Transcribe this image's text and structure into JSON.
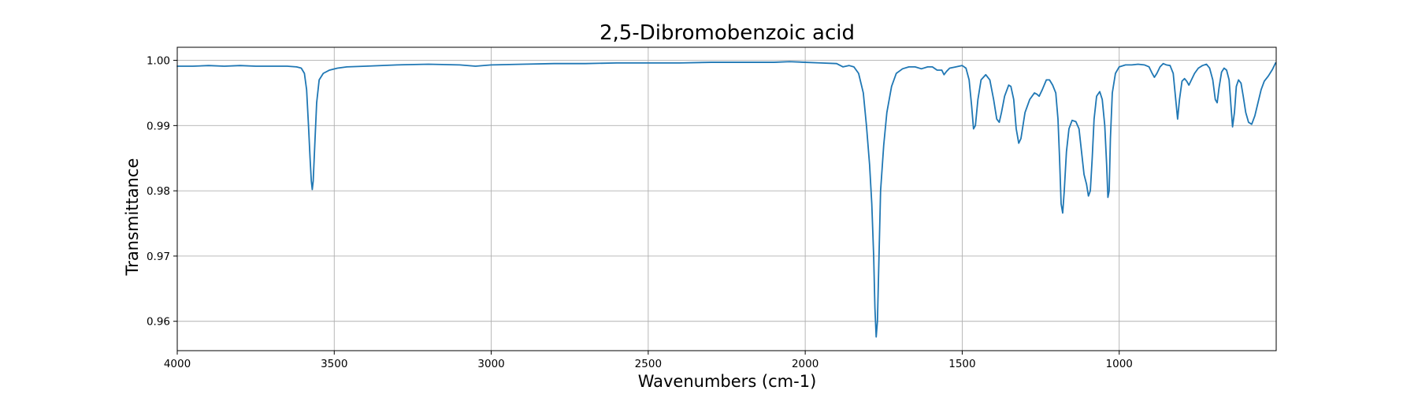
{
  "chart_data": {
    "type": "line",
    "title": "2,5-Dibromobenzoic acid",
    "xlabel": "Wavenumbers (cm-1)",
    "ylabel": "Transmittance",
    "xlim": [
      4000,
      500
    ],
    "ylim": [
      0.9555,
      1.002
    ],
    "x_inverted": true,
    "grid": true,
    "x_ticks": [
      {
        "value": 4000,
        "label": "4000"
      },
      {
        "value": 3500,
        "label": "3500"
      },
      {
        "value": 3000,
        "label": "3000"
      },
      {
        "value": 2500,
        "label": "2500"
      },
      {
        "value": 2000,
        "label": "2000"
      },
      {
        "value": 1500,
        "label": "1500"
      },
      {
        "value": 1000,
        "label": "1000"
      }
    ],
    "y_ticks": [
      {
        "value": 0.96,
        "label": "0.96"
      },
      {
        "value": 0.97,
        "label": "0.97"
      },
      {
        "value": 0.98,
        "label": "0.98"
      },
      {
        "value": 0.99,
        "label": "0.99"
      },
      {
        "value": 1.0,
        "label": "1.00"
      }
    ],
    "colors": {
      "series": "#1f77b4"
    },
    "series": [
      {
        "points": [
          [
            4000,
            0.9991
          ],
          [
            3950,
            0.9991
          ],
          [
            3900,
            0.9992
          ],
          [
            3850,
            0.9991
          ],
          [
            3800,
            0.9992
          ],
          [
            3750,
            0.9991
          ],
          [
            3700,
            0.9991
          ],
          [
            3650,
            0.9991
          ],
          [
            3620,
            0.999
          ],
          [
            3605,
            0.9988
          ],
          [
            3595,
            0.998
          ],
          [
            3588,
            0.9955
          ],
          [
            3582,
            0.99
          ],
          [
            3577,
            0.985
          ],
          [
            3573,
            0.9815
          ],
          [
            3570,
            0.9802
          ],
          [
            3567,
            0.9815
          ],
          [
            3562,
            0.987
          ],
          [
            3556,
            0.9935
          ],
          [
            3548,
            0.997
          ],
          [
            3535,
            0.998
          ],
          [
            3515,
            0.9985
          ],
          [
            3490,
            0.9988
          ],
          [
            3460,
            0.999
          ],
          [
            3400,
            0.9991
          ],
          [
            3300,
            0.9993
          ],
          [
            3200,
            0.9994
          ],
          [
            3100,
            0.9993
          ],
          [
            3050,
            0.9991
          ],
          [
            3000,
            0.9993
          ],
          [
            2900,
            0.9994
          ],
          [
            2800,
            0.9995
          ],
          [
            2700,
            0.9995
          ],
          [
            2600,
            0.9996
          ],
          [
            2500,
            0.9996
          ],
          [
            2400,
            0.9996
          ],
          [
            2300,
            0.9997
          ],
          [
            2200,
            0.9997
          ],
          [
            2100,
            0.9997
          ],
          [
            2050,
            0.9998
          ],
          [
            2000,
            0.9997
          ],
          [
            1950,
            0.9996
          ],
          [
            1900,
            0.9995
          ],
          [
            1880,
            0.999
          ],
          [
            1860,
            0.9992
          ],
          [
            1845,
            0.999
          ],
          [
            1830,
            0.998
          ],
          [
            1815,
            0.995
          ],
          [
            1805,
            0.99
          ],
          [
            1795,
            0.984
          ],
          [
            1788,
            0.978
          ],
          [
            1782,
            0.97
          ],
          [
            1778,
            0.962
          ],
          [
            1774,
            0.9576
          ],
          [
            1770,
            0.96
          ],
          [
            1765,
            0.97
          ],
          [
            1760,
            0.98
          ],
          [
            1750,
            0.987
          ],
          [
            1740,
            0.992
          ],
          [
            1725,
            0.996
          ],
          [
            1710,
            0.998
          ],
          [
            1690,
            0.9987
          ],
          [
            1670,
            0.999
          ],
          [
            1650,
            0.999
          ],
          [
            1630,
            0.9987
          ],
          [
            1610,
            0.999
          ],
          [
            1595,
            0.999
          ],
          [
            1580,
            0.9985
          ],
          [
            1565,
            0.9985
          ],
          [
            1558,
            0.9978
          ],
          [
            1550,
            0.9983
          ],
          [
            1540,
            0.9988
          ],
          [
            1520,
            0.999
          ],
          [
            1500,
            0.9992
          ],
          [
            1488,
            0.9988
          ],
          [
            1478,
            0.997
          ],
          [
            1470,
            0.993
          ],
          [
            1464,
            0.9895
          ],
          [
            1458,
            0.99
          ],
          [
            1450,
            0.994
          ],
          [
            1440,
            0.997
          ],
          [
            1425,
            0.9978
          ],
          [
            1412,
            0.997
          ],
          [
            1400,
            0.994
          ],
          [
            1390,
            0.991
          ],
          [
            1382,
            0.9905
          ],
          [
            1375,
            0.992
          ],
          [
            1365,
            0.9945
          ],
          [
            1352,
            0.9962
          ],
          [
            1345,
            0.996
          ],
          [
            1336,
            0.994
          ],
          [
            1328,
            0.9895
          ],
          [
            1320,
            0.9873
          ],
          [
            1313,
            0.988
          ],
          [
            1300,
            0.992
          ],
          [
            1285,
            0.994
          ],
          [
            1270,
            0.995
          ],
          [
            1262,
            0.9948
          ],
          [
            1255,
            0.9945
          ],
          [
            1245,
            0.9955
          ],
          [
            1232,
            0.997
          ],
          [
            1222,
            0.997
          ],
          [
            1212,
            0.9962
          ],
          [
            1202,
            0.995
          ],
          [
            1195,
            0.991
          ],
          [
            1190,
            0.985
          ],
          [
            1185,
            0.978
          ],
          [
            1180,
            0.9766
          ],
          [
            1175,
            0.98
          ],
          [
            1168,
            0.986
          ],
          [
            1160,
            0.9895
          ],
          [
            1150,
            0.9908
          ],
          [
            1138,
            0.9906
          ],
          [
            1128,
            0.9895
          ],
          [
            1120,
            0.986
          ],
          [
            1112,
            0.9825
          ],
          [
            1104,
            0.981
          ],
          [
            1098,
            0.9792
          ],
          [
            1092,
            0.98
          ],
          [
            1086,
            0.985
          ],
          [
            1080,
            0.991
          ],
          [
            1072,
            0.9945
          ],
          [
            1062,
            0.9952
          ],
          [
            1054,
            0.994
          ],
          [
            1046,
            0.99
          ],
          [
            1040,
            0.984
          ],
          [
            1036,
            0.979
          ],
          [
            1032,
            0.98
          ],
          [
            1028,
            0.988
          ],
          [
            1022,
            0.995
          ],
          [
            1012,
            0.998
          ],
          [
            1000,
            0.999
          ],
          [
            980,
            0.9993
          ],
          [
            960,
            0.9993
          ],
          [
            940,
            0.9994
          ],
          [
            920,
            0.9993
          ],
          [
            905,
            0.999
          ],
          [
            895,
            0.998
          ],
          [
            888,
            0.9974
          ],
          [
            880,
            0.998
          ],
          [
            870,
            0.999
          ],
          [
            860,
            0.9995
          ],
          [
            850,
            0.9993
          ],
          [
            838,
            0.9992
          ],
          [
            828,
            0.998
          ],
          [
            820,
            0.994
          ],
          [
            814,
            0.991
          ],
          [
            808,
            0.994
          ],
          [
            800,
            0.9968
          ],
          [
            792,
            0.9972
          ],
          [
            785,
            0.9968
          ],
          [
            778,
            0.9962
          ],
          [
            770,
            0.997
          ],
          [
            760,
            0.998
          ],
          [
            748,
            0.9988
          ],
          [
            735,
            0.9992
          ],
          [
            722,
            0.9994
          ],
          [
            712,
            0.9988
          ],
          [
            702,
            0.997
          ],
          [
            694,
            0.994
          ],
          [
            688,
            0.9935
          ],
          [
            682,
            0.9958
          ],
          [
            674,
            0.9982
          ],
          [
            666,
            0.9988
          ],
          [
            658,
            0.9985
          ],
          [
            650,
            0.997
          ],
          [
            644,
            0.993
          ],
          [
            639,
            0.9898
          ],
          [
            633,
            0.992
          ],
          [
            627,
            0.996
          ],
          [
            620,
            0.997
          ],
          [
            612,
            0.9965
          ],
          [
            605,
            0.9945
          ],
          [
            597,
            0.992
          ],
          [
            588,
            0.9905
          ],
          [
            578,
            0.9902
          ],
          [
            568,
            0.9915
          ],
          [
            558,
            0.9935
          ],
          [
            548,
            0.9955
          ],
          [
            538,
            0.9968
          ],
          [
            525,
            0.9976
          ],
          [
            512,
            0.9986
          ],
          [
            502,
            0.9996
          ]
        ]
      }
    ]
  }
}
